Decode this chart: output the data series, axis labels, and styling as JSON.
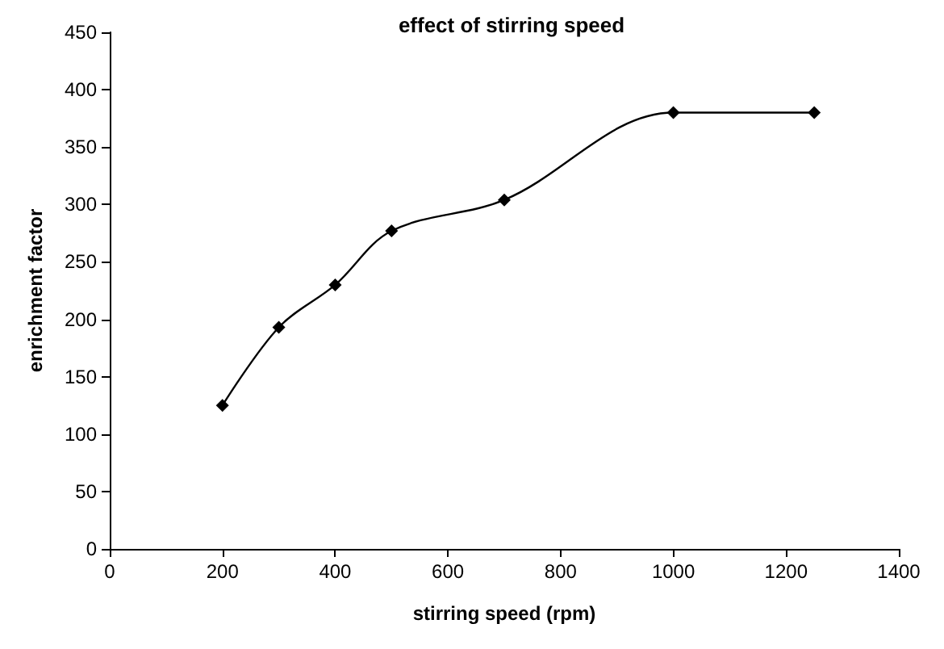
{
  "chart_data": {
    "type": "line",
    "title": "effect of stirring speed",
    "xlabel": "stirring speed (rpm)",
    "ylabel": "enrichment factor",
    "x": [
      200,
      300,
      400,
      500,
      700,
      1000,
      1250
    ],
    "series": [
      {
        "color": "#000000",
        "values": [
          125,
          193,
          230,
          277,
          304,
          380,
          380
        ]
      }
    ],
    "xlim": [
      0,
      1400
    ],
    "xticks": [
      0,
      200,
      400,
      600,
      800,
      1000,
      1200,
      1400
    ],
    "ylim": [
      0,
      450
    ],
    "yticks": [
      0,
      50,
      100,
      150,
      200,
      250,
      300,
      350,
      400,
      450
    ],
    "grid": false,
    "marker": "diamond",
    "line_style": "solid"
  }
}
